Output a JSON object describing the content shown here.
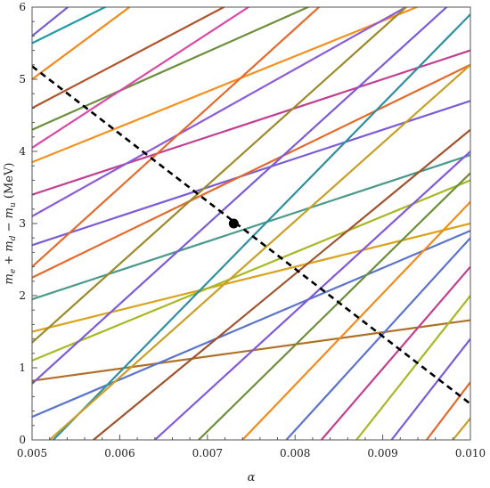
{
  "chart_data": {
    "type": "line",
    "title": "",
    "xlabel": "α",
    "ylabel_parts": {
      "m": "m",
      "e": "e",
      "plus1": " + ",
      "d": "d",
      "minus": " − ",
      "u": "u",
      "unit": " (MeV)"
    },
    "xlim": [
      0.005,
      0.01
    ],
    "ylim": [
      0,
      6
    ],
    "x_ticks": [
      "0.005",
      "0.006",
      "0.007",
      "0.008",
      "0.009",
      "0.010"
    ],
    "y_ticks": [
      "0",
      "1",
      "2",
      "3",
      "4",
      "5",
      "6"
    ],
    "grid": false,
    "reference_line": {
      "style": "dashed",
      "color": "#000000",
      "points": [
        [
          0.005,
          5.18
        ],
        [
          0.01,
          0.5
        ]
      ]
    },
    "marker": {
      "x": 0.0073,
      "y": 3.0,
      "color": "#000000"
    },
    "series": [
      {
        "color": "#d9a21f",
        "values": [
          [
            0.005,
            1.5
          ],
          [
            0.01,
            3.0
          ]
        ]
      },
      {
        "color": "#b0702a",
        "values": [
          [
            0.005,
            0.82
          ],
          [
            0.01,
            1.66
          ]
        ]
      },
      {
        "color": "#4a9a8c",
        "values": [
          [
            0.005,
            1.95
          ],
          [
            0.01,
            3.95
          ]
        ]
      },
      {
        "color": "#7b5cd6",
        "values": [
          [
            0.005,
            2.7
          ],
          [
            0.01,
            4.7
          ]
        ]
      },
      {
        "color": "#c23f8f",
        "values": [
          [
            0.005,
            3.4
          ],
          [
            0.01,
            5.4
          ]
        ]
      },
      {
        "color": "#f5901e",
        "values": [
          [
            0.005,
            3.85
          ],
          [
            0.01,
            6.3
          ]
        ]
      },
      {
        "color": "#6c8f3d",
        "values": [
          [
            0.005,
            4.3
          ],
          [
            0.01,
            7.0
          ]
        ]
      },
      {
        "color": "#5b74c9",
        "values": [
          [
            0.005,
            0.32
          ],
          [
            0.01,
            2.9
          ]
        ]
      },
      {
        "color": "#a7b822",
        "values": [
          [
            0.005,
            1.1
          ],
          [
            0.01,
            3.6
          ]
        ]
      },
      {
        "color": "#e46a2c",
        "values": [
          [
            0.005,
            2.25
          ],
          [
            0.01,
            5.2
          ]
        ]
      },
      {
        "color": "#8b5bd8",
        "values": [
          [
            0.005,
            3.1
          ],
          [
            0.01,
            6.5
          ]
        ]
      },
      {
        "color": "#b0532a",
        "values": [
          [
            0.005,
            4.6
          ],
          [
            0.01,
            7.8
          ]
        ]
      },
      {
        "color": "#1f9aa6",
        "values": [
          [
            0.005,
            5.5
          ],
          [
            0.01,
            8.5
          ]
        ]
      },
      {
        "color": "#d94aa8",
        "values": [
          [
            0.005,
            4.05
          ],
          [
            0.01,
            8.0
          ]
        ]
      },
      {
        "color": "#f08a1a",
        "values": [
          [
            0.005,
            5.0
          ],
          [
            0.01,
            9.5
          ]
        ]
      },
      {
        "color": "#7a5bd0",
        "values": [
          [
            0.005,
            5.6
          ],
          [
            0.01,
            10.5
          ]
        ]
      },
      {
        "color": "#9c8a2a",
        "values": [
          [
            0.005,
            1.35
          ],
          [
            0.01,
            6.8
          ]
        ]
      },
      {
        "color": "#7b5cd6",
        "values": [
          [
            0.005,
            0.78
          ],
          [
            0.01,
            6.3
          ]
        ]
      },
      {
        "color": "#e46a2c",
        "values": [
          [
            0.005,
            2.4
          ],
          [
            0.01,
            7.9
          ]
        ]
      },
      {
        "color": "#2f8fa0",
        "values": [
          [
            0.005,
            -0.3
          ],
          [
            0.01,
            5.9
          ]
        ]
      },
      {
        "color": "#c8a027",
        "values": [
          [
            0.0052,
            0.0
          ],
          [
            0.01,
            5.2
          ]
        ]
      },
      {
        "color": "#a0522d",
        "values": [
          [
            0.0057,
            0.0
          ],
          [
            0.01,
            4.3
          ]
        ]
      },
      {
        "color": "#8257d8",
        "values": [
          [
            0.0064,
            0.0
          ],
          [
            0.01,
            4.0
          ]
        ]
      },
      {
        "color": "#6d8f3a",
        "values": [
          [
            0.0069,
            0.0
          ],
          [
            0.01,
            3.7
          ]
        ]
      },
      {
        "color": "#f08a1a",
        "values": [
          [
            0.0074,
            0.0
          ],
          [
            0.01,
            3.3
          ]
        ]
      },
      {
        "color": "#5b74c9",
        "values": [
          [
            0.0079,
            0.0
          ],
          [
            0.01,
            2.8
          ]
        ]
      },
      {
        "color": "#c23f8f",
        "values": [
          [
            0.0083,
            0.0
          ],
          [
            0.01,
            2.4
          ]
        ]
      },
      {
        "color": "#a7b822",
        "values": [
          [
            0.0087,
            0.0
          ],
          [
            0.01,
            2.0
          ]
        ]
      },
      {
        "color": "#7b5cd6",
        "values": [
          [
            0.0091,
            0.0
          ],
          [
            0.01,
            1.4
          ]
        ]
      },
      {
        "color": "#e46a2c",
        "values": [
          [
            0.0095,
            0.0
          ],
          [
            0.01,
            0.8
          ]
        ]
      },
      {
        "color": "#c8a027",
        "values": [
          [
            0.0098,
            0.0
          ],
          [
            0.01,
            0.3
          ]
        ]
      }
    ]
  }
}
